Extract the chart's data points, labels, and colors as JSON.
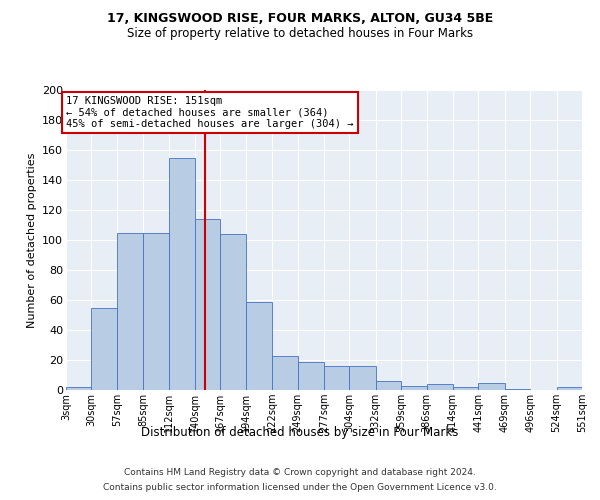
{
  "title1": "17, KINGSWOOD RISE, FOUR MARKS, ALTON, GU34 5BE",
  "title2": "Size of property relative to detached houses in Four Marks",
  "xlabel": "Distribution of detached houses by size in Four Marks",
  "ylabel": "Number of detached properties",
  "bin_edges": [
    3,
    30,
    57,
    85,
    112,
    140,
    167,
    194,
    222,
    249,
    277,
    304,
    332,
    359,
    386,
    414,
    441,
    469,
    496,
    524,
    551
  ],
  "bar_heights": [
    2,
    55,
    105,
    105,
    155,
    114,
    104,
    59,
    23,
    19,
    16,
    16,
    6,
    3,
    4,
    2,
    5,
    1,
    0,
    2
  ],
  "bar_color": "#b8cce4",
  "bar_edgecolor": "#4472c4",
  "property_size": 151,
  "vline_color": "#cc0000",
  "annotation_text": "17 KINGSWOOD RISE: 151sqm\n← 54% of detached houses are smaller (364)\n45% of semi-detached houses are larger (304) →",
  "annotation_box_color": "white",
  "annotation_box_edgecolor": "#cc0000",
  "ylim": [
    0,
    200
  ],
  "yticks": [
    0,
    20,
    40,
    60,
    80,
    100,
    120,
    140,
    160,
    180,
    200
  ],
  "bg_color": "#e8eef5",
  "grid_color": "white",
  "footer1": "Contains HM Land Registry data © Crown copyright and database right 2024.",
  "footer2": "Contains public sector information licensed under the Open Government Licence v3.0."
}
